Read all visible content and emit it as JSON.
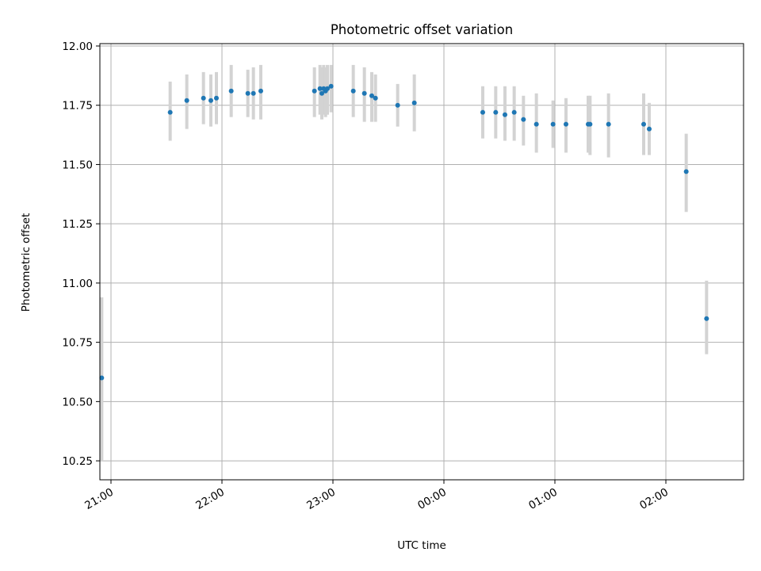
{
  "chart_data": {
    "type": "scatter",
    "title": "Photometric offset variation",
    "xlabel": "UTC time",
    "ylabel": "Photometric offset",
    "xticks": [
      "21:00",
      "22:00",
      "23:00",
      "00:00",
      "01:00",
      "02:00"
    ],
    "yticks": [
      "10.25",
      "10.50",
      "10.75",
      "11.00",
      "11.25",
      "11.50",
      "11.75",
      "12.00"
    ],
    "xlim": [
      "20:54",
      "02:42"
    ],
    "ylim": [
      10.17,
      12.01
    ],
    "grid": true,
    "colors": {
      "point": "#1f77b4",
      "errorbar": "#d3d3d3",
      "grid": "#b0b0b0"
    },
    "points": [
      {
        "t": "20:55",
        "y": 10.6,
        "lo": 10.25,
        "hi": 10.94
      },
      {
        "t": "21:32",
        "y": 11.72,
        "lo": 11.6,
        "hi": 11.85
      },
      {
        "t": "21:41",
        "y": 11.77,
        "lo": 11.65,
        "hi": 11.88
      },
      {
        "t": "21:50",
        "y": 11.78,
        "lo": 11.67,
        "hi": 11.89
      },
      {
        "t": "21:54",
        "y": 11.77,
        "lo": 11.66,
        "hi": 11.88
      },
      {
        "t": "21:57",
        "y": 11.78,
        "lo": 11.67,
        "hi": 11.89
      },
      {
        "t": "22:05",
        "y": 11.81,
        "lo": 11.7,
        "hi": 11.92
      },
      {
        "t": "22:14",
        "y": 11.8,
        "lo": 11.7,
        "hi": 11.9
      },
      {
        "t": "22:17",
        "y": 11.8,
        "lo": 11.69,
        "hi": 11.91
      },
      {
        "t": "22:21",
        "y": 11.81,
        "lo": 11.69,
        "hi": 11.92
      },
      {
        "t": "22:50",
        "y": 11.81,
        "lo": 11.7,
        "hi": 11.91
      },
      {
        "t": "22:53",
        "y": 11.82,
        "lo": 11.71,
        "hi": 11.92
      },
      {
        "t": "22:54",
        "y": 11.8,
        "lo": 11.69,
        "hi": 11.91
      },
      {
        "t": "22:55",
        "y": 11.82,
        "lo": 11.71,
        "hi": 11.92
      },
      {
        "t": "22:56",
        "y": 11.81,
        "lo": 11.7,
        "hi": 11.91
      },
      {
        "t": "22:57",
        "y": 11.82,
        "lo": 11.71,
        "hi": 11.92
      },
      {
        "t": "22:59",
        "y": 11.83,
        "lo": 11.72,
        "hi": 11.92
      },
      {
        "t": "23:11",
        "y": 11.81,
        "lo": 11.7,
        "hi": 11.92
      },
      {
        "t": "23:17",
        "y": 11.8,
        "lo": 11.68,
        "hi": 11.91
      },
      {
        "t": "23:21",
        "y": 11.79,
        "lo": 11.68,
        "hi": 11.89
      },
      {
        "t": "23:23",
        "y": 11.78,
        "lo": 11.68,
        "hi": 11.88
      },
      {
        "t": "23:35",
        "y": 11.75,
        "lo": 11.66,
        "hi": 11.84
      },
      {
        "t": "23:44",
        "y": 11.76,
        "lo": 11.64,
        "hi": 11.88
      },
      {
        "t": "00:21",
        "y": 11.72,
        "lo": 11.61,
        "hi": 11.83
      },
      {
        "t": "00:28",
        "y": 11.72,
        "lo": 11.61,
        "hi": 11.83
      },
      {
        "t": "00:33",
        "y": 11.71,
        "lo": 11.6,
        "hi": 11.83
      },
      {
        "t": "00:38",
        "y": 11.72,
        "lo": 11.6,
        "hi": 11.83
      },
      {
        "t": "00:43",
        "y": 11.69,
        "lo": 11.58,
        "hi": 11.79
      },
      {
        "t": "00:50",
        "y": 11.67,
        "lo": 11.55,
        "hi": 11.8
      },
      {
        "t": "00:59",
        "y": 11.67,
        "lo": 11.57,
        "hi": 11.77
      },
      {
        "t": "01:06",
        "y": 11.67,
        "lo": 11.55,
        "hi": 11.78
      },
      {
        "t": "01:18",
        "y": 11.67,
        "lo": 11.55,
        "hi": 11.79
      },
      {
        "t": "01:19",
        "y": 11.67,
        "lo": 11.54,
        "hi": 11.79
      },
      {
        "t": "01:29",
        "y": 11.67,
        "lo": 11.53,
        "hi": 11.8
      },
      {
        "t": "01:48",
        "y": 11.67,
        "lo": 11.54,
        "hi": 11.8
      },
      {
        "t": "01:51",
        "y": 11.65,
        "lo": 11.54,
        "hi": 11.76
      },
      {
        "t": "02:11",
        "y": 11.47,
        "lo": 11.3,
        "hi": 11.63
      },
      {
        "t": "02:22",
        "y": 10.85,
        "lo": 10.7,
        "hi": 11.01
      }
    ]
  }
}
